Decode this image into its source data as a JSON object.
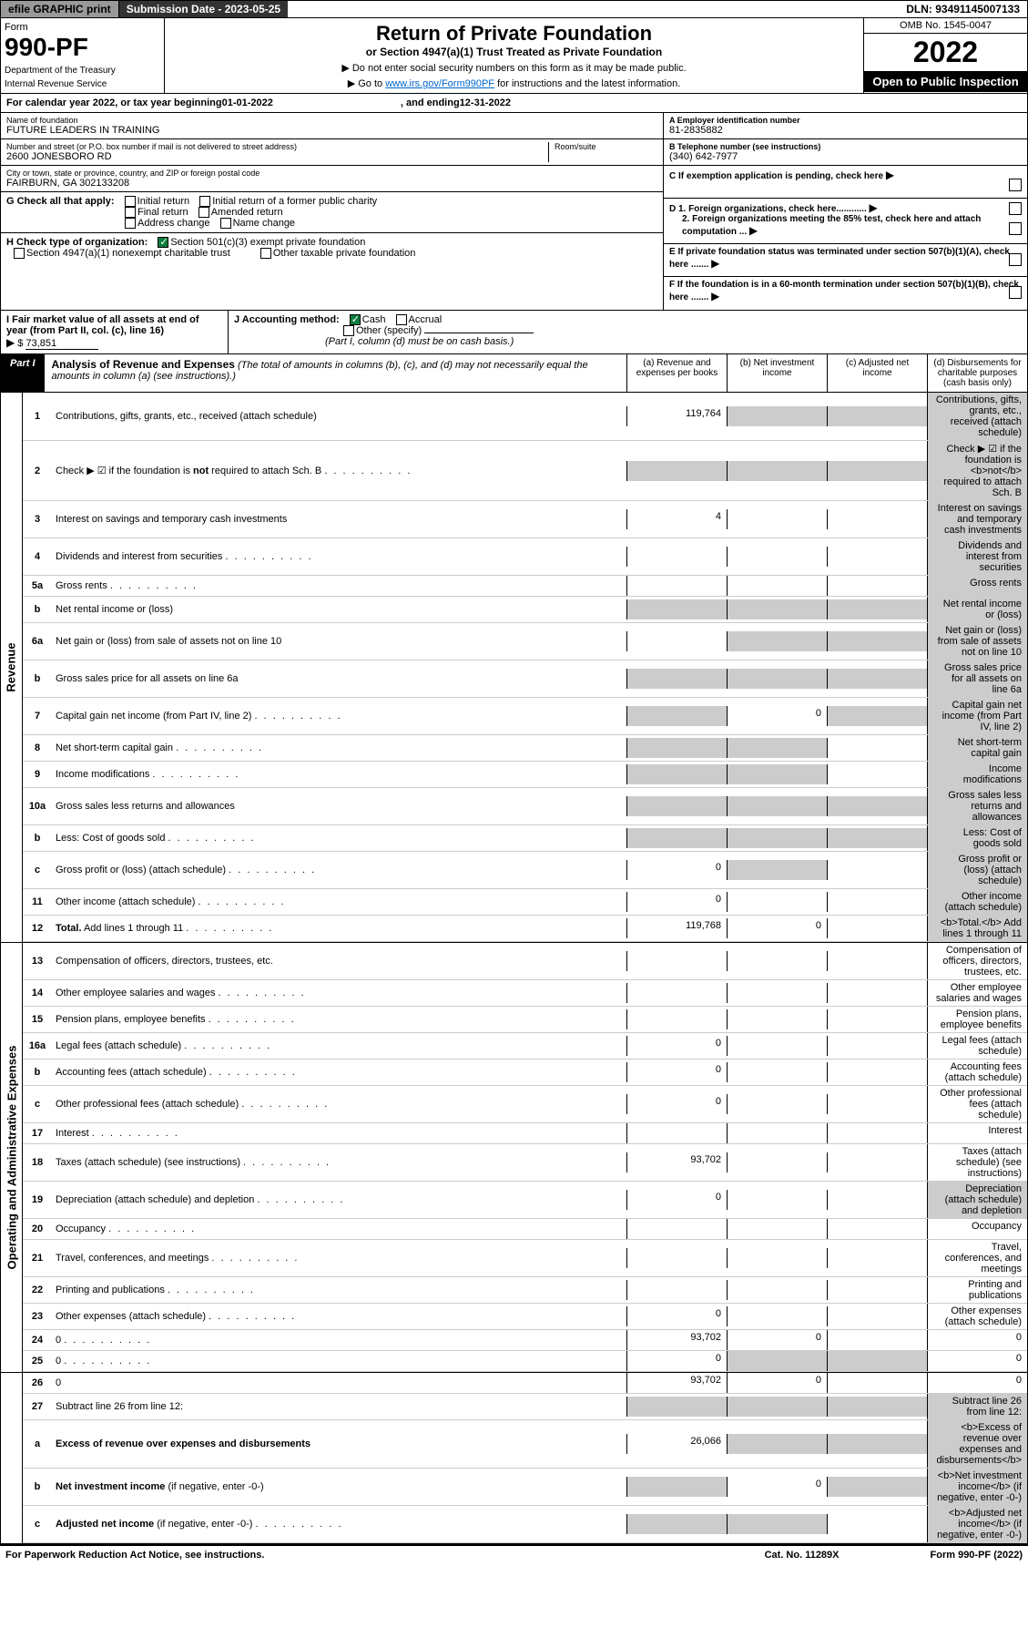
{
  "topbar": {
    "efile": "efile GRAPHIC print",
    "submission_label": "Submission Date - 2023-05-25",
    "dln": "DLN: 93491145007133"
  },
  "header": {
    "form_label": "Form",
    "form_number": "990-PF",
    "dept1": "Department of the Treasury",
    "dept2": "Internal Revenue Service",
    "title": "Return of Private Foundation",
    "subtitle": "or Section 4947(a)(1) Trust Treated as Private Foundation",
    "note1": "▶ Do not enter social security numbers on this form as it may be made public.",
    "note2_pre": "▶ Go to ",
    "note2_link": "www.irs.gov/Form990PF",
    "note2_post": " for instructions and the latest information.",
    "omb": "OMB No. 1545-0047",
    "year": "2022",
    "open_public": "Open to Public Inspection"
  },
  "calendar": {
    "text_pre": "For calendar year 2022, or tax year beginning ",
    "begin": "01-01-2022",
    "mid": ", and ending ",
    "end": "12-31-2022"
  },
  "info": {
    "name_label": "Name of foundation",
    "name": "FUTURE LEADERS IN TRAINING",
    "addr_label": "Number and street (or P.O. box number if mail is not delivered to street address)",
    "addr": "2600 JONESBORO RD",
    "room_label": "Room/suite",
    "city_label": "City or town, state or province, country, and ZIP or foreign postal code",
    "city": "FAIRBURN, GA  302133208",
    "ein_label": "A Employer identification number",
    "ein": "81-2835882",
    "phone_label": "B Telephone number (see instructions)",
    "phone": "(340) 642-7977",
    "c_label": "C If exemption application is pending, check here",
    "d1": "D 1. Foreign organizations, check here............",
    "d2": "2. Foreign organizations meeting the 85% test, check here and attach computation ...",
    "e_label": "E  If private foundation status was terminated under section 507(b)(1)(A), check here .......",
    "f_label": "F  If the foundation is in a 60-month termination under section 507(b)(1)(B), check here .......",
    "g_label": "G Check all that apply:",
    "g_opts": [
      "Initial return",
      "Initial return of a former public charity",
      "Final return",
      "Amended return",
      "Address change",
      "Name change"
    ],
    "h_label": "H Check type of organization:",
    "h1": "Section 501(c)(3) exempt private foundation",
    "h2": "Section 4947(a)(1) nonexempt charitable trust",
    "h3": "Other taxable private foundation",
    "i_label": "I Fair market value of all assets at end of year (from Part II, col. (c), line 16)",
    "i_val": "73,851",
    "j_label": "J Accounting method:",
    "j_cash": "Cash",
    "j_accrual": "Accrual",
    "j_other": "Other (specify)",
    "j_note": "(Part I, column (d) must be on cash basis.)"
  },
  "part1": {
    "badge": "Part I",
    "title": "Analysis of Revenue and Expenses",
    "title_note": "(The total of amounts in columns (b), (c), and (d) may not necessarily equal the amounts in column (a) (see instructions).)",
    "col_a": "(a) Revenue and expenses per books",
    "col_b": "(b) Net investment income",
    "col_c": "(c) Adjusted net income",
    "col_d": "(d) Disbursements for charitable purposes (cash basis only)"
  },
  "sides": {
    "revenue": "Revenue",
    "expenses": "Operating and Administrative Expenses"
  },
  "rows": [
    {
      "n": "1",
      "d": "Contributions, gifts, grants, etc., received (attach schedule)",
      "a": "119,764",
      "bgrey": true,
      "cgrey": true,
      "dgrey": true
    },
    {
      "n": "2",
      "d": "Check ▶ ☑ if the foundation is <b>not</b> required to attach Sch. B",
      "allgrey": true,
      "dots": true
    },
    {
      "n": "3",
      "d": "Interest on savings and temporary cash investments",
      "a": "4",
      "dgrey": true
    },
    {
      "n": "4",
      "d": "Dividends and interest from securities",
      "dots": true,
      "dgrey": true
    },
    {
      "n": "5a",
      "d": "Gross rents",
      "dots": true,
      "dgrey": true
    },
    {
      "n": "b",
      "d": "Net rental income or (loss)",
      "allgrey": true,
      "inlinebox": true
    },
    {
      "n": "6a",
      "d": "Net gain or (loss) from sale of assets not on line 10",
      "bgrey": true,
      "cgrey": true,
      "dgrey": true
    },
    {
      "n": "b",
      "d": "Gross sales price for all assets on line 6a",
      "allgrey": true,
      "inlinebox": true
    },
    {
      "n": "7",
      "d": "Capital gain net income (from Part IV, line 2)",
      "dots": true,
      "agrey": true,
      "b": "0",
      "cgrey": true,
      "dgrey": true
    },
    {
      "n": "8",
      "d": "Net short-term capital gain",
      "dots": true,
      "agrey": true,
      "bgrey": true,
      "dgrey": true
    },
    {
      "n": "9",
      "d": "Income modifications",
      "dots": true,
      "agrey": true,
      "bgrey": true,
      "dgrey": true
    },
    {
      "n": "10a",
      "d": "Gross sales less returns and allowances",
      "allgrey": true,
      "inlinebox": true
    },
    {
      "n": "b",
      "d": "Less: Cost of goods sold",
      "dots": true,
      "allgrey": true,
      "inlinebox": true
    },
    {
      "n": "c",
      "d": "Gross profit or (loss) (attach schedule)",
      "dots": true,
      "a": "0",
      "bgrey": true,
      "dgrey": true
    },
    {
      "n": "11",
      "d": "Other income (attach schedule)",
      "dots": true,
      "a": "0",
      "dgrey": true
    },
    {
      "n": "12",
      "d": "<b>Total.</b> Add lines 1 through 11",
      "dots": true,
      "a": "119,768",
      "b": "0",
      "dgrey": true,
      "bold": true
    },
    {
      "n": "13",
      "d": "Compensation of officers, directors, trustees, etc."
    },
    {
      "n": "14",
      "d": "Other employee salaries and wages",
      "dots": true
    },
    {
      "n": "15",
      "d": "Pension plans, employee benefits",
      "dots": true
    },
    {
      "n": "16a",
      "d": "Legal fees (attach schedule)",
      "dots": true,
      "a": "0"
    },
    {
      "n": "b",
      "d": "Accounting fees (attach schedule)",
      "dots": true,
      "a": "0"
    },
    {
      "n": "c",
      "d": "Other professional fees (attach schedule)",
      "dots": true,
      "a": "0"
    },
    {
      "n": "17",
      "d": "Interest",
      "dots": true
    },
    {
      "n": "18",
      "d": "Taxes (attach schedule) (see instructions)",
      "dots": true,
      "a": "93,702"
    },
    {
      "n": "19",
      "d": "Depreciation (attach schedule) and depletion",
      "dots": true,
      "a": "0",
      "dgrey": true
    },
    {
      "n": "20",
      "d": "Occupancy",
      "dots": true
    },
    {
      "n": "21",
      "d": "Travel, conferences, and meetings",
      "dots": true
    },
    {
      "n": "22",
      "d": "Printing and publications",
      "dots": true
    },
    {
      "n": "23",
      "d": "Other expenses (attach schedule)",
      "dots": true,
      "a": "0"
    },
    {
      "n": "24",
      "d": "0",
      "dots": true,
      "a": "93,702",
      "b": "0"
    },
    {
      "n": "25",
      "d": "0",
      "dots": true,
      "a": "0",
      "bgrey": true,
      "cgrey": true
    },
    {
      "n": "26",
      "d": "0",
      "a": "93,702",
      "b": "0"
    },
    {
      "n": "27",
      "d": "Subtract line 26 from line 12:",
      "allgrey": true
    },
    {
      "n": "a",
      "d": "<b>Excess of revenue over expenses and disbursements</b>",
      "a": "26,066",
      "bgrey": true,
      "cgrey": true,
      "dgrey": true
    },
    {
      "n": "b",
      "d": "<b>Net investment income</b> (if negative, enter -0-)",
      "agrey": true,
      "b": "0",
      "cgrey": true,
      "dgrey": true
    },
    {
      "n": "c",
      "d": "<b>Adjusted net income</b> (if negative, enter -0-)",
      "dots": true,
      "agrey": true,
      "bgrey": true,
      "dgrey": true
    }
  ],
  "footer": {
    "left": "For Paperwork Reduction Act Notice, see instructions.",
    "mid": "Cat. No. 11289X",
    "right": "Form 990-PF (2022)"
  },
  "colors": {
    "grey_cell": "#cccccc",
    "black": "#000000",
    "link": "#0066cc",
    "check_green": "#0a7d3e"
  }
}
